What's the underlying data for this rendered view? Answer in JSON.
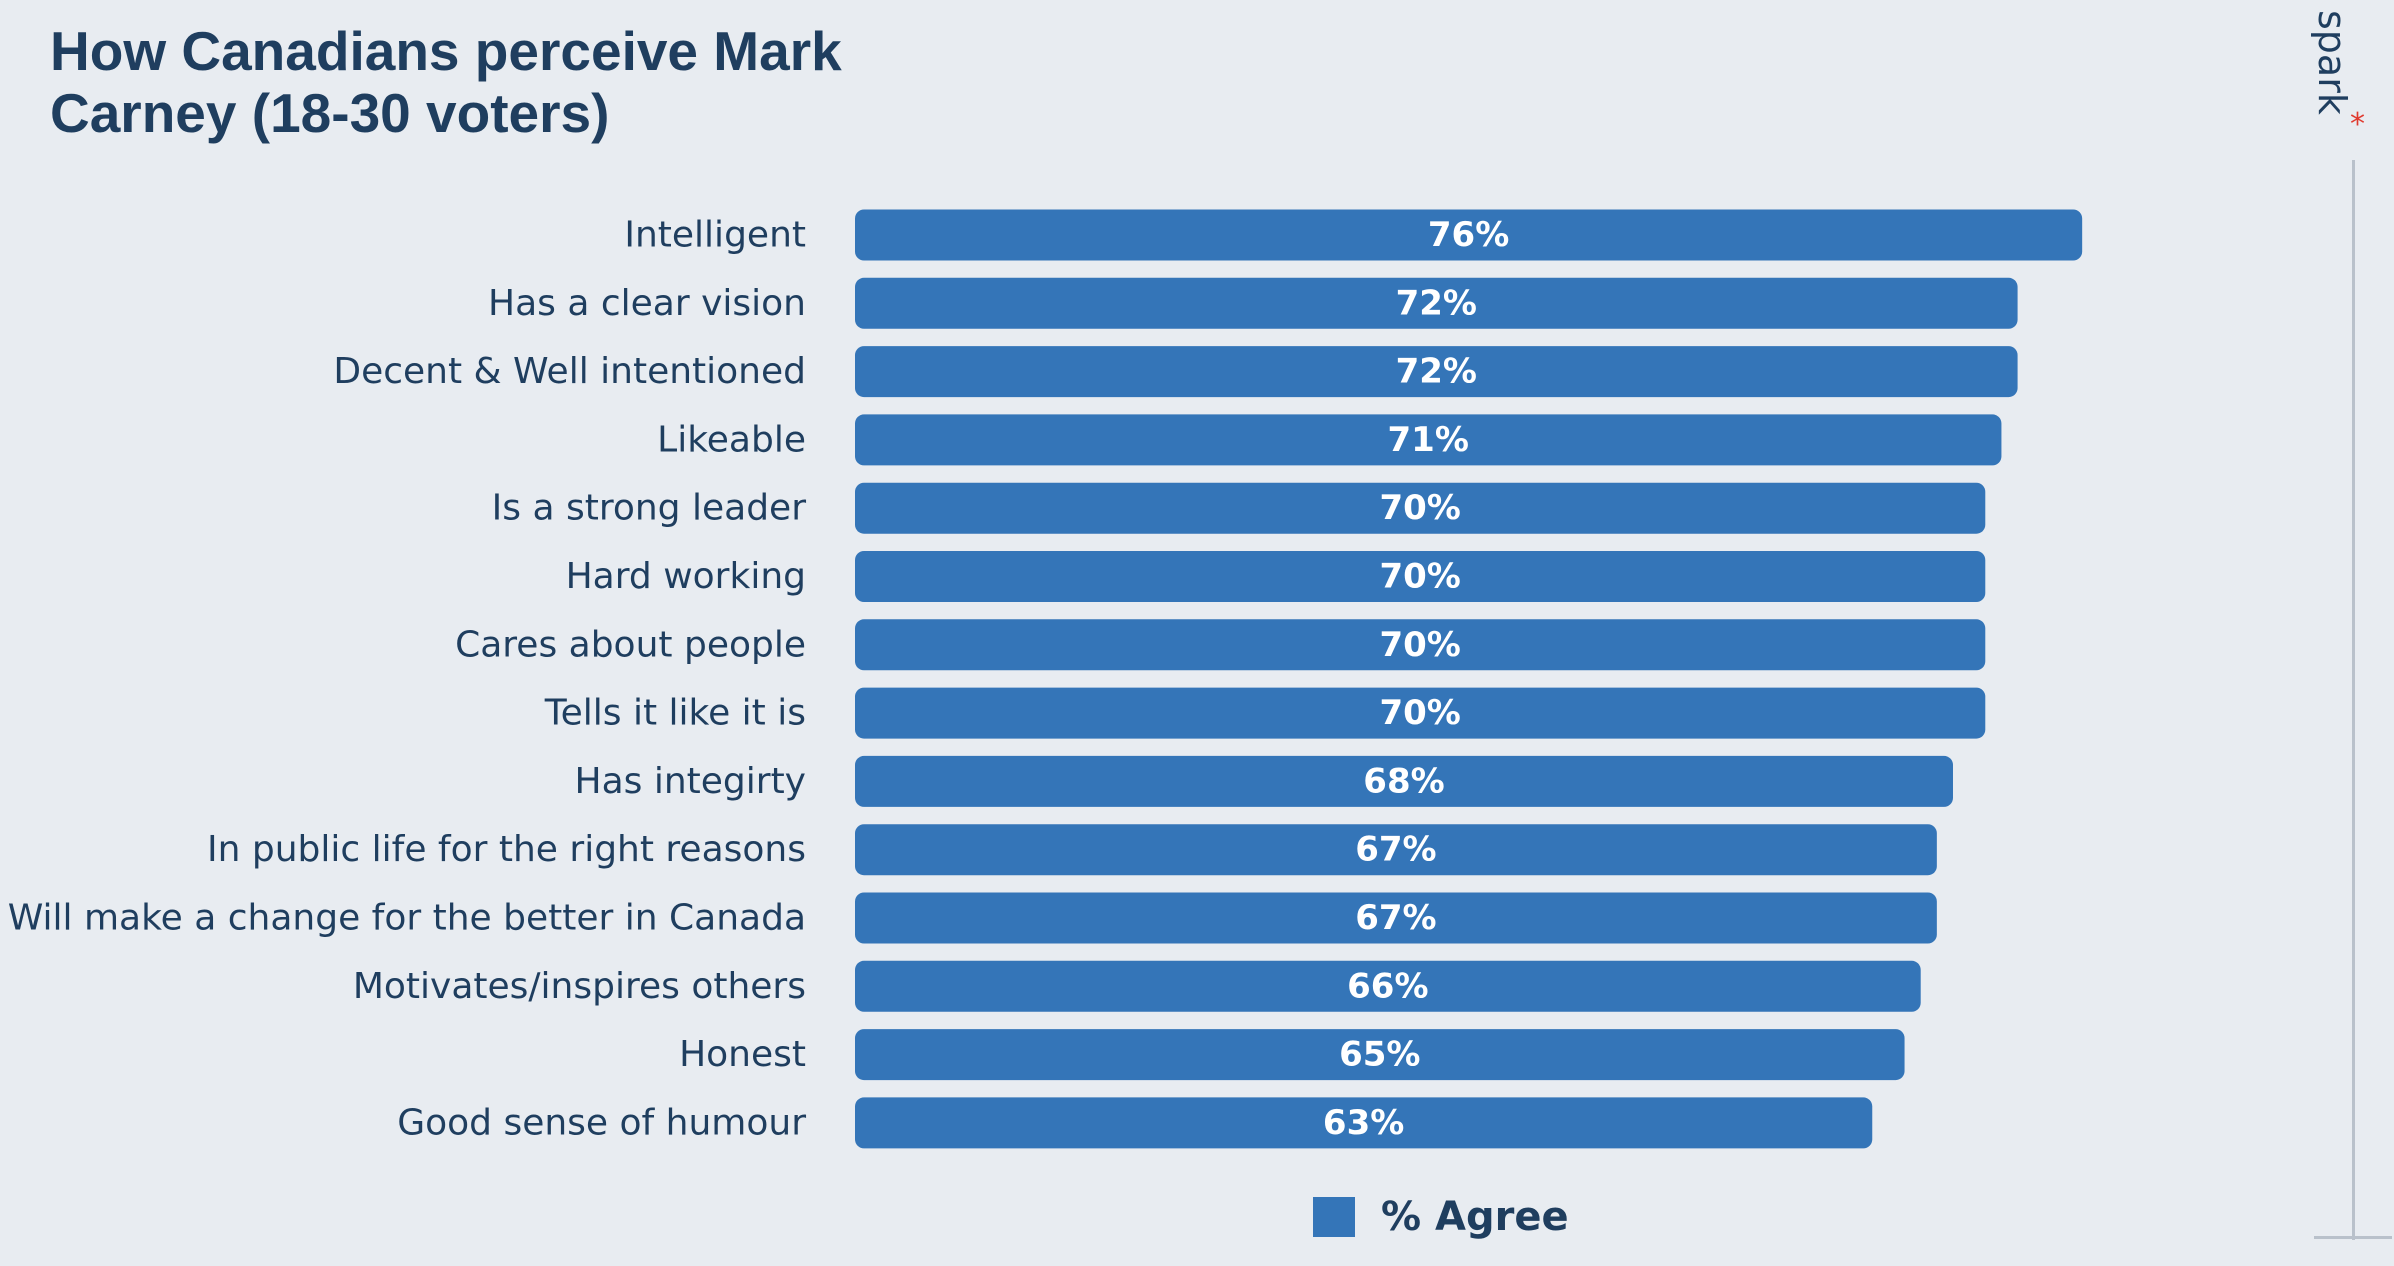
{
  "title": "How Canadians perceive Mark Carney (18-30 voters)",
  "brand": {
    "word": "spark",
    "mark": "*",
    "mark_color": "#e03a2f"
  },
  "colors": {
    "background": "#e8ecf1",
    "bar": "#3475b8",
    "text": "#1f3e5f"
  },
  "chart_data": {
    "type": "bar",
    "orientation": "horizontal",
    "categories": [
      "Intelligent",
      "Has a clear vision",
      "Decent & Well intentioned",
      "Likeable",
      "Is a strong leader",
      "Hard working",
      "Cares about people",
      "Tells it like it is",
      "Has integirty",
      "In public life for the right reasons",
      "Will make a change for the better in Canada",
      "Motivates/inspires others",
      "Honest",
      "Good sense of humour"
    ],
    "series": [
      {
        "name": "% Agree",
        "values": [
          76,
          72,
          72,
          71,
          70,
          70,
          70,
          70,
          68,
          67,
          67,
          66,
          65,
          63
        ],
        "labels": [
          "76%",
          "72%",
          "72%",
          "71%",
          "70%",
          "70%",
          "70%",
          "70%",
          "68%",
          "67%",
          "67%",
          "66%",
          "65%",
          "63%"
        ]
      }
    ],
    "xlim": [
      0,
      100
    ],
    "grid": false,
    "legend_position": "bottom"
  }
}
